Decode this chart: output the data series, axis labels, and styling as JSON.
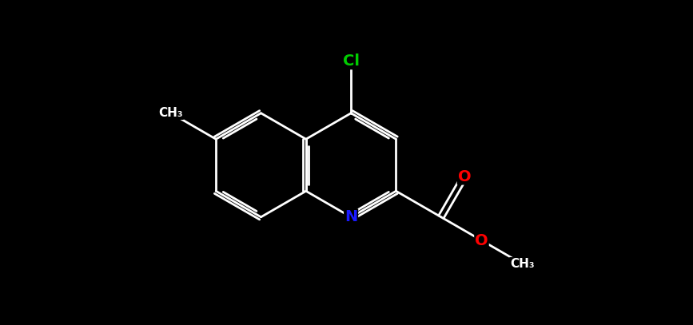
{
  "background_color": "#000000",
  "bond_color": "#ffffff",
  "bond_width": 2.0,
  "atom_colors": {
    "N": "#1a1aff",
    "O": "#ff0000",
    "Cl": "#00cc00",
    "C": "#ffffff"
  },
  "font_size_N": 14,
  "font_size_Cl": 14,
  "font_size_O": 14,
  "font_size_CH3": 11,
  "figure_width": 8.67,
  "figure_height": 4.07,
  "dpi": 100
}
